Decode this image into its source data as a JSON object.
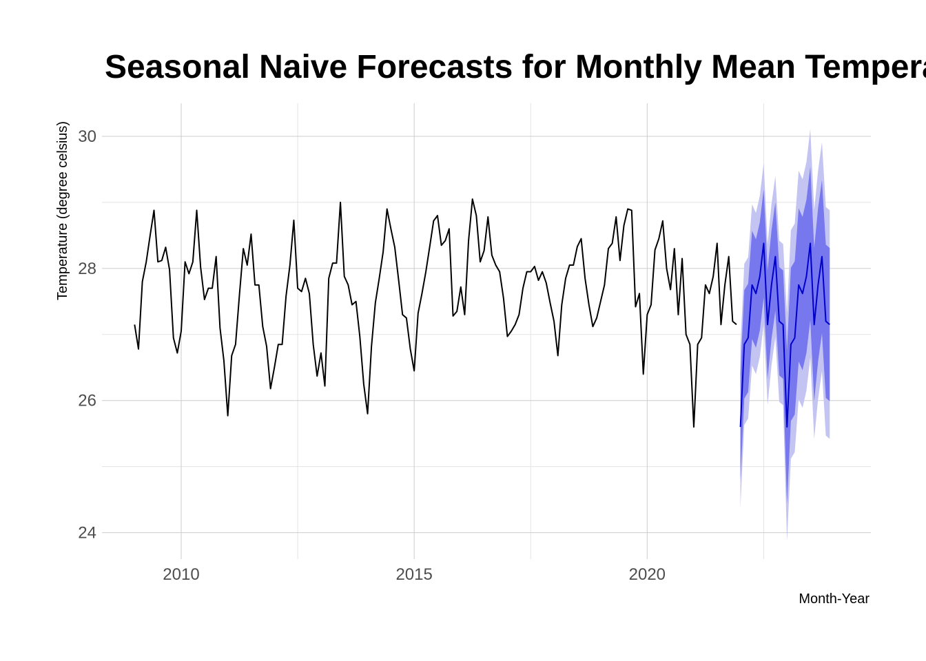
{
  "chart_data": {
    "type": "line",
    "title": "Seasonal Naive Forecasts for Monthly Mean Temperature",
    "xlabel": "Month-Year",
    "ylabel": "Temperature (degree celsius)",
    "xlim": [
      2008.3,
      2024.8
    ],
    "ylim": [
      23.6,
      30.5
    ],
    "x_ticks": [
      2010,
      2015,
      2020
    ],
    "y_ticks": [
      24,
      26,
      28,
      30
    ],
    "grid": true,
    "legend": "none",
    "colors": {
      "history": "#000000",
      "forecast": "#0000cc",
      "pi80": "#7777ee",
      "pi95": "#c4c4f2",
      "grid": "#cccccc"
    },
    "history": {
      "start": "2009-01",
      "frequency": "monthly",
      "values": [
        27.15,
        26.78,
        27.8,
        28.1,
        28.5,
        28.88,
        28.1,
        28.12,
        28.32,
        27.98,
        26.95,
        26.72,
        27.05,
        28.1,
        27.92,
        28.1,
        28.88,
        28.02,
        27.53,
        27.7,
        27.7,
        28.18,
        27.1,
        26.6,
        25.77,
        26.68,
        26.85,
        27.6,
        28.3,
        28.05,
        28.52,
        27.75,
        27.75,
        27.12,
        26.82,
        26.18,
        26.5,
        26.85,
        26.85,
        27.58,
        28.05,
        28.73,
        27.7,
        27.65,
        27.85,
        27.62,
        26.85,
        26.37,
        26.72,
        26.22,
        27.85,
        28.08,
        28.08,
        29.0,
        27.88,
        27.75,
        27.45,
        27.5,
        26.97,
        26.25,
        25.8,
        26.82,
        27.48,
        27.85,
        28.25,
        28.9,
        28.6,
        28.32,
        27.82,
        27.3,
        27.25,
        26.78,
        26.45,
        27.32,
        27.62,
        27.95,
        28.33,
        28.72,
        28.8,
        28.35,
        28.42,
        28.6,
        27.28,
        27.35,
        27.72,
        27.3,
        28.42,
        29.05,
        28.8,
        28.1,
        28.27,
        28.78,
        28.2,
        28.05,
        27.95,
        27.55,
        26.97,
        27.05,
        27.15,
        27.3,
        27.7,
        27.95,
        27.95,
        28.03,
        27.82,
        27.95,
        27.78,
        27.48,
        27.2,
        26.68,
        27.45,
        27.85,
        28.05,
        28.05,
        28.33,
        28.45,
        27.85,
        27.45,
        27.12,
        27.25,
        27.5,
        27.75,
        28.3,
        28.38,
        28.78,
        28.12,
        28.65,
        28.9,
        28.88,
        27.42,
        27.62,
        26.4,
        27.3,
        27.45,
        28.28,
        28.45,
        28.72,
        28.0,
        27.68,
        28.3,
        27.3,
        28.15,
        27.0,
        26.85,
        25.6,
        26.85,
        26.95,
        27.75,
        27.62,
        27.88,
        28.38,
        27.15,
        27.75,
        28.18,
        27.2,
        27.15
      ]
    },
    "forecast": {
      "start": "2022-01",
      "frequency": "monthly",
      "values": [
        25.6,
        26.85,
        26.95,
        27.75,
        27.62,
        27.88,
        28.38,
        27.15,
        27.75,
        28.18,
        27.2,
        27.15,
        25.6,
        26.85,
        26.95,
        27.75,
        27.62,
        27.88,
        28.38,
        27.15,
        27.75,
        28.18,
        27.2,
        27.15
      ],
      "pi80_halfwidth": [
        0.82,
        0.82,
        0.82,
        0.82,
        0.82,
        0.82,
        0.82,
        0.82,
        0.82,
        0.82,
        0.82,
        0.82,
        1.16,
        1.16,
        1.16,
        1.16,
        1.16,
        1.16,
        1.16,
        1.16,
        1.16,
        1.16,
        1.16,
        1.16
      ],
      "pi95_halfwidth": [
        1.22,
        1.22,
        1.22,
        1.22,
        1.22,
        1.22,
        1.22,
        1.22,
        1.22,
        1.22,
        1.22,
        1.22,
        1.73,
        1.73,
        1.73,
        1.73,
        1.73,
        1.73,
        1.73,
        1.73,
        1.73,
        1.73,
        1.73,
        1.73
      ]
    }
  }
}
